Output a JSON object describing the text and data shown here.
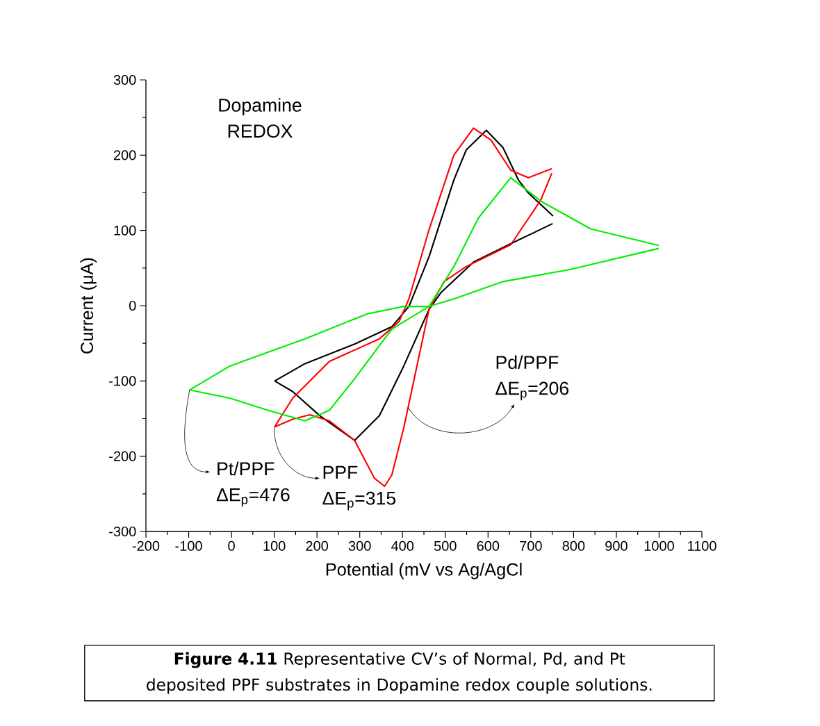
{
  "chart_data": {
    "type": "line",
    "xlabel": "Potential (mV vs Ag/AgCl",
    "ylabel": "Current (μA)",
    "xlim": [
      -200,
      1100
    ],
    "ylim": [
      -300,
      300
    ],
    "xticks": [
      -200,
      -100,
      0,
      100,
      200,
      300,
      400,
      500,
      600,
      700,
      800,
      900,
      1000,
      1100
    ],
    "yticks": [
      -300,
      -200,
      -100,
      0,
      100,
      200,
      300
    ],
    "series": [
      {
        "color": "#000000",
        "x": [
          101,
          172,
          288,
          375,
          415,
          462,
          520,
          549,
          596,
          635,
          671,
          694,
          752
        ],
        "values": [
          -100,
          -77,
          -51,
          -28,
          -1,
          65,
          167,
          207,
          233,
          210,
          167,
          150,
          119
        ]
      },
      {
        "color": "#000000",
        "x": [
          751,
          659,
          566,
          491,
          462,
          403,
          346,
          288,
          206,
          143,
          101
        ],
        "values": [
          109,
          84,
          58,
          18,
          -5,
          -80,
          -146,
          -179,
          -146,
          -114,
          -100
        ]
      },
      {
        "color": "#ff0000",
        "x": [
          101,
          143,
          229,
          346,
          392,
          415,
          462,
          520,
          566,
          607,
          653,
          694,
          749
        ],
        "values": [
          -161,
          -123,
          -74,
          -44,
          -21,
          9,
          101,
          200,
          236,
          220,
          180,
          170,
          182
        ]
      },
      {
        "color": "#ff0000",
        "x": [
          749,
          723,
          653,
          549,
          497,
          462,
          403,
          375,
          358,
          334,
          288,
          229,
          183,
          143,
          101
        ],
        "values": [
          176,
          140,
          81,
          52,
          32,
          -5,
          -162,
          -225,
          -240,
          -229,
          -179,
          -153,
          -145,
          -151,
          -161
        ]
      },
      {
        "color": "#00ee00",
        "x": [
          -98,
          -3,
          172,
          317,
          403,
          462,
          520,
          635,
          791,
          999
        ],
        "values": [
          -112,
          -80,
          -44,
          -11,
          -1,
          -1,
          9,
          32,
          48,
          76
        ]
      },
      {
        "color": "#00ee00",
        "x": [
          999,
          840,
          726,
          653,
          578,
          520,
          462,
          375,
          288,
          229,
          172,
          85,
          -3,
          -98
        ],
        "values": [
          80,
          102,
          138,
          170,
          117,
          52,
          -1,
          -31,
          -97,
          -139,
          -153,
          -139,
          -123,
          -112
        ]
      }
    ],
    "annotations": [
      "Dopamine REDOX",
      {
        "text": "Pt/PPF ΔE$_{p}$=476",
        "x": -98,
        "y": -112
      },
      {
        "text": "PPF ΔE$_{p}$=315",
        "x": 101,
        "y": -161
      },
      {
        "text": "Pd/PPF ΔE$_{p}$=206",
        "x": 413,
        "y": -135
      },
      "**Figure 4.11** Representative CV’s of Normal, Pd, and Pt deposited PPF substrates in Dopamine redox couple solutions."
    ]
  }
}
